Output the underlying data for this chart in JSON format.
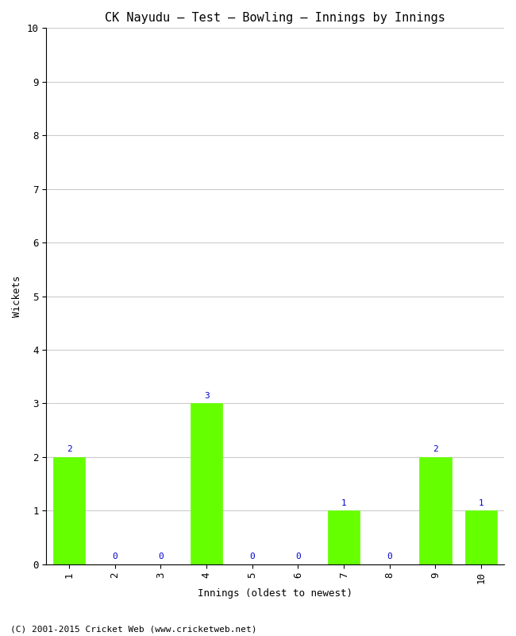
{
  "title": "CK Nayudu – Test – Bowling – Innings by Innings",
  "xlabel": "Innings (oldest to newest)",
  "ylabel": "Wickets",
  "categories": [
    "1",
    "2",
    "3",
    "4",
    "5",
    "6",
    "7",
    "8",
    "9",
    "10"
  ],
  "values": [
    2,
    0,
    0,
    3,
    0,
    0,
    1,
    0,
    2,
    1
  ],
  "bar_color": "#66ff00",
  "bar_edge_color": "#66ff00",
  "annotation_color": "#0000cc",
  "ylim": [
    0,
    10
  ],
  "yticks": [
    0,
    1,
    2,
    3,
    4,
    5,
    6,
    7,
    8,
    9,
    10
  ],
  "background_color": "#ffffff",
  "grid_color": "#cccccc",
  "title_fontsize": 11,
  "axis_label_fontsize": 9,
  "tick_fontsize": 9,
  "annotation_fontsize": 8,
  "footer": "(C) 2001-2015 Cricket Web (www.cricketweb.net)",
  "footer_fontsize": 8
}
